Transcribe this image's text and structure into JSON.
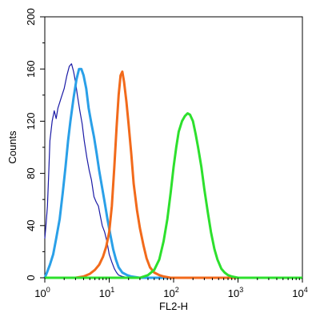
{
  "chart_data": {
    "type": "line",
    "title": "",
    "xlabel": "FL2-H",
    "ylabel": "Counts",
    "x_scale": "log",
    "xlim": [
      1,
      10000
    ],
    "ylim": [
      0,
      200
    ],
    "grid": false,
    "x_ticks": [
      {
        "value": 1,
        "base": "10",
        "exp": "0"
      },
      {
        "value": 10,
        "base": "10",
        "exp": "1"
      },
      {
        "value": 100,
        "base": "10",
        "exp": "2"
      },
      {
        "value": 1000,
        "base": "10",
        "exp": "3"
      },
      {
        "value": 10000,
        "base": "10",
        "exp": "4"
      }
    ],
    "y_ticks": [
      "0",
      "40",
      "80",
      "120",
      "160",
      "200"
    ],
    "series": [
      {
        "color": "#1a1aa6",
        "points": [
          [
            1.0,
            30
          ],
          [
            1.05,
            42
          ],
          [
            1.1,
            55
          ],
          [
            1.15,
            80
          ],
          [
            1.2,
            105
          ],
          [
            1.3,
            120
          ],
          [
            1.4,
            128
          ],
          [
            1.5,
            122
          ],
          [
            1.6,
            130
          ],
          [
            1.8,
            138
          ],
          [
            2.0,
            145
          ],
          [
            2.2,
            155
          ],
          [
            2.4,
            162
          ],
          [
            2.6,
            164
          ],
          [
            2.8,
            158
          ],
          [
            3.0,
            150
          ],
          [
            3.2,
            140
          ],
          [
            3.5,
            128
          ],
          [
            3.8,
            118
          ],
          [
            4.1,
            105
          ],
          [
            4.5,
            92
          ],
          [
            4.9,
            82
          ],
          [
            5.3,
            75
          ],
          [
            5.8,
            62
          ],
          [
            6.3,
            58
          ],
          [
            6.8,
            55
          ],
          [
            7.3,
            47
          ],
          [
            7.8,
            40
          ],
          [
            8.5,
            35
          ],
          [
            9.2,
            28
          ],
          [
            10,
            18
          ],
          [
            11,
            12
          ],
          [
            12,
            7
          ],
          [
            13,
            4
          ],
          [
            14,
            2
          ],
          [
            16,
            1
          ],
          [
            20,
            0
          ],
          [
            10000,
            0
          ]
        ]
      },
      {
        "color": "#2aa0e8",
        "points": [
          [
            1.0,
            0
          ],
          [
            1.1,
            5
          ],
          [
            1.2,
            10
          ],
          [
            1.35,
            18
          ],
          [
            1.5,
            30
          ],
          [
            1.7,
            45
          ],
          [
            1.9,
            65
          ],
          [
            2.1,
            85
          ],
          [
            2.3,
            105
          ],
          [
            2.5,
            120
          ],
          [
            2.8,
            138
          ],
          [
            3.1,
            152
          ],
          [
            3.4,
            160
          ],
          [
            3.7,
            160
          ],
          [
            4.0,
            155
          ],
          [
            4.4,
            145
          ],
          [
            4.8,
            130
          ],
          [
            5.3,
            118
          ],
          [
            5.8,
            108
          ],
          [
            6.4,
            95
          ],
          [
            7.0,
            82
          ],
          [
            7.7,
            70
          ],
          [
            8.5,
            58
          ],
          [
            9.4,
            45
          ],
          [
            10.4,
            33
          ],
          [
            11.5,
            22
          ],
          [
            12.7,
            14
          ],
          [
            14,
            8
          ],
          [
            16,
            4
          ],
          [
            19,
            2
          ],
          [
            22,
            1
          ],
          [
            30,
            0
          ],
          [
            10000,
            0
          ]
        ]
      },
      {
        "color": "#f26a1b",
        "points": [
          [
            1.0,
            0
          ],
          [
            3.0,
            0
          ],
          [
            4.0,
            1
          ],
          [
            5.0,
            3
          ],
          [
            6.0,
            6
          ],
          [
            7.0,
            10
          ],
          [
            8.0,
            16
          ],
          [
            9.0,
            24
          ],
          [
            10.0,
            35
          ],
          [
            11.0,
            55
          ],
          [
            12.0,
            85
          ],
          [
            13.0,
            115
          ],
          [
            14.0,
            140
          ],
          [
            15.0,
            155
          ],
          [
            16.0,
            158
          ],
          [
            17.0,
            150
          ],
          [
            18.5,
            135
          ],
          [
            20.0,
            118
          ],
          [
            22.0,
            95
          ],
          [
            24.0,
            72
          ],
          [
            27.0,
            52
          ],
          [
            30.0,
            38
          ],
          [
            34.0,
            25
          ],
          [
            38.0,
            15
          ],
          [
            43.0,
            8
          ],
          [
            50.0,
            4
          ],
          [
            60.0,
            2
          ],
          [
            70.0,
            1
          ],
          [
            90,
            0
          ],
          [
            10000,
            0
          ]
        ]
      },
      {
        "color": "#2de02d",
        "points": [
          [
            1.0,
            0
          ],
          [
            30,
            0
          ],
          [
            40,
            2
          ],
          [
            50,
            6
          ],
          [
            60,
            14
          ],
          [
            70,
            28
          ],
          [
            80,
            45
          ],
          [
            90,
            65
          ],
          [
            100,
            85
          ],
          [
            110,
            100
          ],
          [
            120,
            112
          ],
          [
            135,
            120
          ],
          [
            150,
            124
          ],
          [
            165,
            126
          ],
          [
            180,
            125
          ],
          [
            200,
            120
          ],
          [
            220,
            110
          ],
          [
            240,
            100
          ],
          [
            270,
            85
          ],
          [
            300,
            68
          ],
          [
            340,
            50
          ],
          [
            380,
            35
          ],
          [
            430,
            22
          ],
          [
            480,
            14
          ],
          [
            550,
            7
          ],
          [
            620,
            4
          ],
          [
            700,
            2
          ],
          [
            800,
            1
          ],
          [
            1000,
            0
          ],
          [
            10000,
            0
          ]
        ]
      }
    ]
  }
}
